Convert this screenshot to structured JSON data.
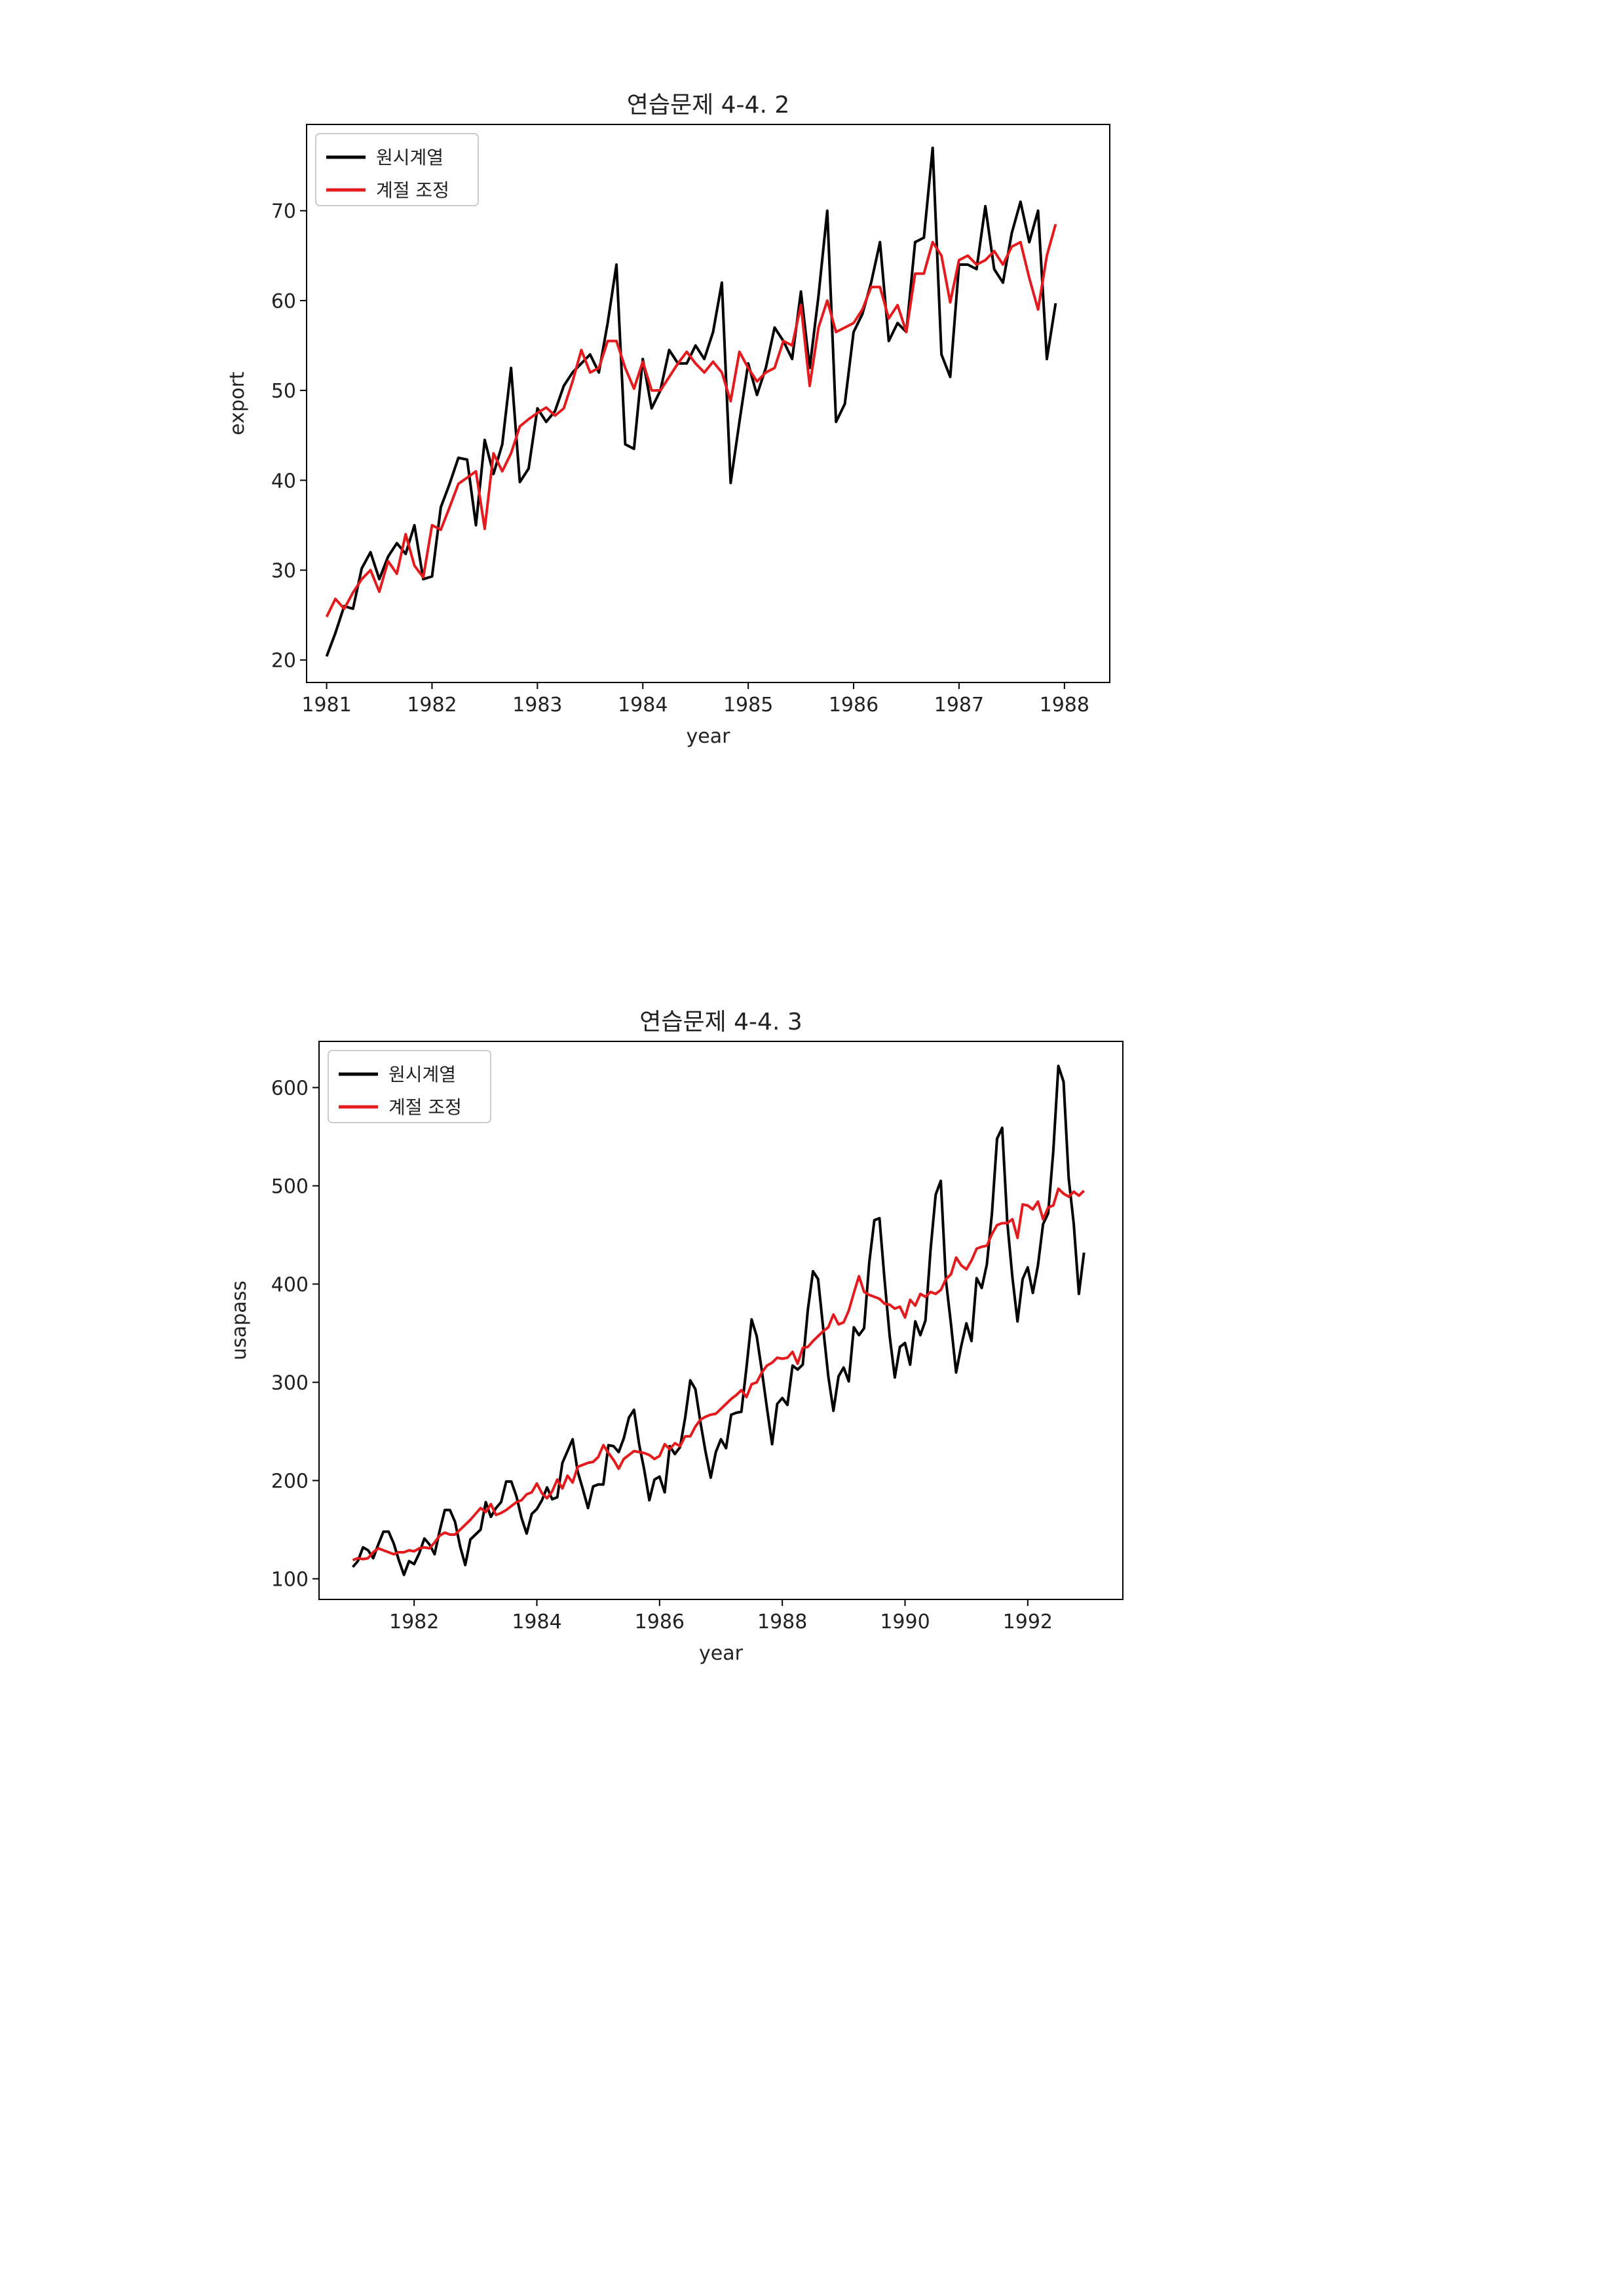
{
  "chart_data": [
    {
      "type": "line",
      "title": "연습문제 4-4. 2",
      "xlabel": "year",
      "ylabel": "export",
      "xlim": [
        1980.81,
        1988.43
      ],
      "ylim": [
        17.5,
        79.6
      ],
      "x_ticks": [
        1981,
        1982,
        1983,
        1984,
        1985,
        1986,
        1987,
        1988
      ],
      "y_ticks": [
        20,
        30,
        40,
        50,
        60,
        70
      ],
      "legend": "top-left",
      "grid": false,
      "x_start": 1981.0,
      "x_step": 0.083333,
      "series": [
        {
          "name": "원시계열",
          "color": "#000000",
          "values": [
            20.4,
            23.0,
            26.0,
            25.7,
            30.2,
            32.0,
            29.0,
            31.5,
            33.0,
            31.8,
            35.0,
            29.0,
            29.3,
            37.0,
            39.6,
            42.5,
            42.3,
            35.0,
            44.5,
            40.7,
            44.0,
            52.5,
            39.8,
            41.3,
            48.0,
            46.5,
            47.7,
            50.5,
            52.0,
            53.0,
            54.0,
            52.0,
            57.5,
            64.0,
            44.0,
            43.5,
            53.5,
            48.0,
            50.0,
            54.5,
            53.0,
            53.0,
            55.0,
            53.5,
            56.5,
            62.0,
            39.7,
            46.5,
            53.0,
            49.5,
            52.5,
            57.0,
            55.5,
            53.5,
            61.0,
            52.5,
            60.5,
            70.0,
            46.5,
            48.5,
            56.5,
            58.5,
            62.0,
            66.5,
            55.5,
            57.5,
            56.5,
            66.5,
            67.0,
            77.0,
            54.0,
            51.5,
            64.0,
            64.0,
            63.5,
            70.5,
            63.5,
            62.0,
            67.5,
            71.0,
            66.5,
            70.0,
            53.5,
            59.7
          ]
        },
        {
          "name": "계절 조정",
          "color": "#e41a1c",
          "values": [
            24.8,
            26.8,
            25.7,
            27.5,
            29.0,
            30.0,
            27.6,
            31.0,
            29.6,
            34.0,
            30.5,
            29.2,
            35.0,
            34.5,
            37.0,
            39.6,
            40.3,
            41.0,
            34.6,
            43.0,
            41.0,
            43.0,
            46.0,
            46.8,
            47.5,
            48.1,
            47.2,
            48.0,
            51.0,
            54.5,
            52.0,
            52.5,
            55.5,
            55.5,
            52.5,
            50.2,
            53.2,
            50.0,
            50.0,
            51.5,
            53.0,
            54.3,
            53.0,
            52.0,
            53.2,
            52.0,
            48.8,
            54.3,
            52.5,
            51.0,
            52.0,
            52.5,
            55.5,
            55.0,
            59.5,
            50.5,
            57.0,
            60.0,
            56.5,
            57.0,
            57.5,
            59.0,
            61.5,
            61.5,
            58.0,
            59.5,
            56.5,
            63.0,
            63.0,
            66.5,
            65.0,
            59.8,
            64.5,
            65.0,
            64.0,
            64.5,
            65.5,
            64.0,
            66.0,
            66.5,
            62.5,
            59.0,
            65.0,
            68.5
          ]
        }
      ]
    },
    {
      "type": "line",
      "title": "연습문제 4-4. 3",
      "xlabel": "year",
      "ylabel": "usapass",
      "xlim": [
        1980.45,
        1993.55
      ],
      "ylim": [
        79.0,
        647.0
      ],
      "x_ticks": [
        1982,
        1984,
        1986,
        1988,
        1990,
        1992
      ],
      "y_ticks": [
        100,
        200,
        300,
        400,
        500,
        600
      ],
      "legend": "top-left",
      "grid": false,
      "x_start": 1981.0,
      "x_step": 0.083333,
      "series": [
        {
          "name": "원시계열",
          "color": "#000000",
          "values": [
            112,
            118,
            132,
            129,
            121,
            135,
            148,
            148,
            136,
            119,
            104,
            118,
            115,
            126,
            141,
            135,
            125,
            149,
            170,
            170,
            158,
            133,
            114,
            140,
            145,
            150,
            178,
            163,
            172,
            178,
            199,
            199,
            184,
            162,
            146,
            166,
            171,
            180,
            193,
            181,
            183,
            218,
            230,
            242,
            209,
            191,
            172,
            194,
            196,
            196,
            236,
            235,
            229,
            243,
            264,
            272,
            237,
            211,
            180,
            201,
            204,
            188,
            235,
            227,
            234,
            264,
            302,
            293,
            259,
            229,
            203,
            229,
            242,
            233,
            267,
            269,
            270,
            315,
            364,
            347,
            312,
            274,
            237,
            278,
            284,
            277,
            317,
            313,
            318,
            374,
            413,
            405,
            355,
            306,
            271,
            306,
            315,
            301,
            356,
            348,
            355,
            422,
            465,
            467,
            404,
            347,
            305,
            336,
            340,
            318,
            362,
            348,
            363,
            435,
            491,
            505,
            404,
            359,
            310,
            337,
            360,
            342,
            406,
            396,
            420,
            472,
            548,
            559,
            463,
            407,
            362,
            405,
            417,
            391,
            419,
            461,
            472,
            535,
            622,
            606,
            508,
            461,
            390,
            432
          ]
        },
        {
          "name": "계절 조정",
          "color": "#e41a1c",
          "values": [
            119,
            121,
            120,
            121,
            127,
            131,
            129,
            127,
            125,
            127,
            127,
            129,
            128,
            131,
            132,
            131,
            137,
            144,
            147,
            145,
            145,
            150,
            155,
            160,
            166,
            172,
            168,
            176,
            165,
            167,
            170,
            174,
            178,
            180,
            186,
            188,
            197,
            187,
            182,
            189,
            201,
            192,
            205,
            198,
            214,
            216,
            218,
            219,
            224,
            236,
            228,
            221,
            212,
            222,
            226,
            230,
            229,
            228,
            226,
            222,
            225,
            237,
            232,
            238,
            235,
            245,
            245,
            255,
            262,
            265,
            267,
            268,
            273,
            278,
            283,
            287,
            292,
            285,
            298,
            300,
            310,
            317,
            320,
            325,
            324,
            325,
            331,
            319,
            335,
            336,
            342,
            347,
            352,
            356,
            369,
            359,
            361,
            373,
            391,
            408,
            392,
            389,
            387,
            385,
            380,
            379,
            375,
            377,
            366,
            384,
            378,
            390,
            387,
            392,
            390,
            394,
            405,
            410,
            427,
            419,
            415,
            424,
            436,
            438,
            439,
            451,
            460,
            462,
            462,
            466,
            447,
            481,
            480,
            476,
            484,
            466,
            478,
            480,
            497,
            492,
            489,
            494,
            490,
            495
          ]
        }
      ]
    }
  ]
}
